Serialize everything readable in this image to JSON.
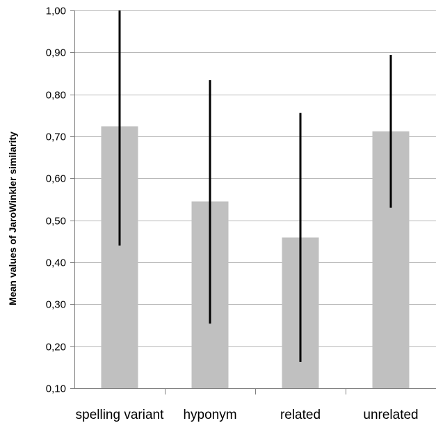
{
  "chart_data": {
    "type": "bar",
    "title": "",
    "xlabel": "",
    "ylabel": "Mean values of JaroWinkler similarity",
    "categories": [
      "spelling variant",
      "hyponym",
      "related",
      "unrelated"
    ],
    "values": [
      0.724,
      0.545,
      0.459,
      0.712
    ],
    "error_bars": {
      "low": [
        0.44,
        0.254,
        0.163,
        0.53
      ],
      "high": [
        1.0,
        0.834,
        0.756,
        0.894
      ]
    },
    "ylim": [
      0.1,
      1.0
    ],
    "yticks": [
      0.1,
      0.2,
      0.3,
      0.4,
      0.5,
      0.6,
      0.7,
      0.8,
      0.9,
      1.0
    ],
    "ytick_labels": [
      "0,10",
      "0,20",
      "0,30",
      "0,40",
      "0,50",
      "0,60",
      "0,70",
      "0,80",
      "0,90",
      "1,00"
    ],
    "grid": true,
    "legend": "none",
    "colors": {
      "bar": "#c0c0c0",
      "error_bar": "#000000",
      "grid": "#b8b8b8",
      "axis": "#808080"
    }
  }
}
